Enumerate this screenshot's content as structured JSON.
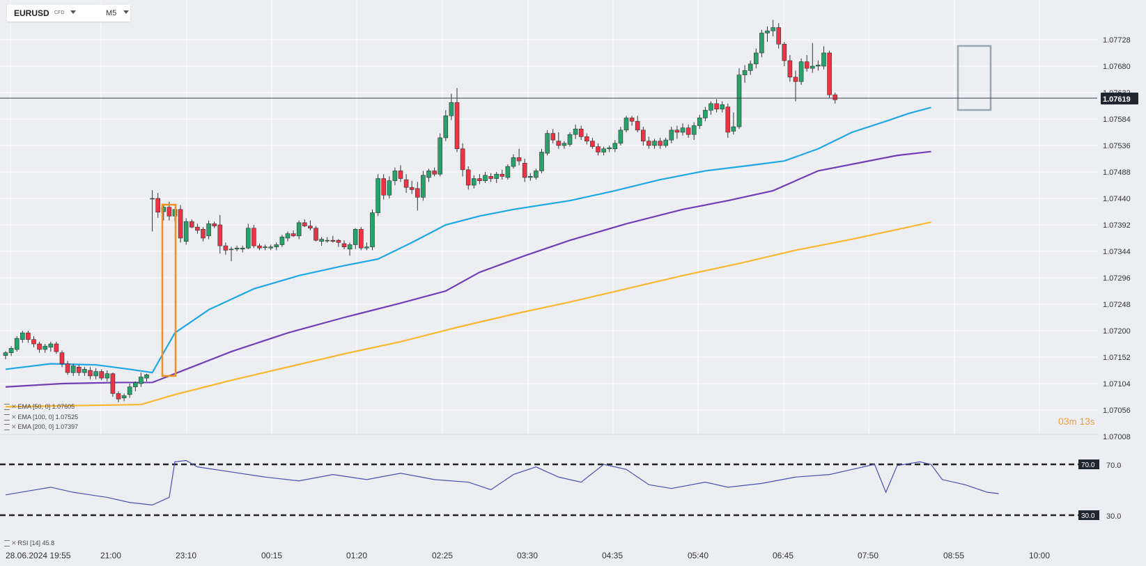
{
  "symbol": {
    "name": "EURUSD",
    "type": "CFD",
    "timeframe": "M5"
  },
  "price_axis": {
    "labels": [
      "1.07728",
      "1.07680",
      "1.07632",
      "1.07584",
      "1.07536",
      "1.07488",
      "1.07440",
      "1.07392",
      "1.07344",
      "1.07296",
      "1.07248",
      "1.07200",
      "1.07152",
      "1.07104",
      "1.07056",
      "1.07008"
    ]
  },
  "current_price": {
    "value": 1.07619,
    "label": "1.07619"
  },
  "countdown": {
    "minutes": "03",
    "m": "m",
    "seconds": "13",
    "s": "s"
  },
  "time_axis": {
    "labels": [
      "28.06.2024  19:55",
      "21:00",
      "23:10",
      "00:15",
      "01:20",
      "02:25",
      "03:30",
      "04:35",
      "05:40",
      "06:45",
      "07:50",
      "08:55",
      "10:00"
    ]
  },
  "indicators": [
    {
      "label": "EMA  [50,  0]  1.07605",
      "color": "#1ea7e4"
    },
    {
      "label": "EMA  [100,  0]  1.07525",
      "color": "#6f3fb5"
    },
    {
      "label": "EMA  [200,  0]  1.07397",
      "color": "#f7b731"
    }
  ],
  "rsi": {
    "label": "RSI  [14]  45.8",
    "upper_label": "70.0",
    "lower_label": "30.0",
    "upper": 70,
    "lower": 30
  },
  "colors": {
    "bull": "#26a26a",
    "bear": "#ee3344",
    "ema50": "#1ea7e4",
    "ema100": "#6f3fb5",
    "ema200": "#f7b731",
    "rsi_line": "#4a4fb0",
    "highlight_orange": "#f0901e",
    "highlight_gray": "#9aa7b0"
  },
  "chart_data": {
    "type": "candlestick",
    "y_range": [
      1.07008,
      1.07776
    ],
    "candles": [
      [
        1.07155,
        1.07163,
        1.07148,
        1.0716
      ],
      [
        1.0716,
        1.07172,
        1.07154,
        1.07168
      ],
      [
        1.07166,
        1.0719,
        1.07162,
        1.07186
      ],
      [
        1.07184,
        1.072,
        1.07178,
        1.07196
      ],
      [
        1.07196,
        1.072,
        1.07178,
        1.07184
      ],
      [
        1.07184,
        1.0719,
        1.0717,
        1.07176
      ],
      [
        1.07176,
        1.0718,
        1.0716,
        1.07166
      ],
      [
        1.07166,
        1.07176,
        1.0716,
        1.07172
      ],
      [
        1.0717,
        1.0718,
        1.07162,
        1.07176
      ],
      [
        1.07176,
        1.0718,
        1.07158,
        1.07162
      ],
      [
        1.0716,
        1.07164,
        1.07134,
        1.0714
      ],
      [
        1.0714,
        1.07145,
        1.0712,
        1.07124
      ],
      [
        1.07124,
        1.0714,
        1.07118,
        1.07136
      ],
      [
        1.07134,
        1.07138,
        1.07118,
        1.07124
      ],
      [
        1.07124,
        1.07134,
        1.07118,
        1.0713
      ],
      [
        1.07128,
        1.07134,
        1.07112,
        1.07118
      ],
      [
        1.07118,
        1.07132,
        1.07112,
        1.07126
      ],
      [
        1.07126,
        1.0713,
        1.0711,
        1.07114
      ],
      [
        1.07114,
        1.07128,
        1.07108,
        1.07122
      ],
      [
        1.07122,
        1.07124,
        1.0708,
        1.07086
      ],
      [
        1.07086,
        1.0709,
        1.0707,
        1.07076
      ],
      [
        1.07078,
        1.07086,
        1.07072,
        1.07082
      ],
      [
        1.07084,
        1.07104,
        1.07078,
        1.07098
      ],
      [
        1.07098,
        1.07108,
        1.0709,
        1.07106
      ],
      [
        1.07104,
        1.07124,
        1.07098,
        1.07116
      ],
      [
        1.07114,
        1.07122,
        1.07108,
        1.0712
      ],
      [
        1.0744,
        1.07455,
        1.0738,
        1.0744
      ],
      [
        1.0744,
        1.0745,
        1.07405,
        1.07415
      ],
      [
        1.07416,
        1.0743,
        1.074,
        1.07424
      ],
      [
        1.07424,
        1.07434,
        1.074,
        1.07408
      ],
      [
        1.07408,
        1.0742,
        1.07398,
        1.0742
      ],
      [
        1.0742,
        1.07428,
        1.0736,
        1.07368
      ],
      [
        1.07362,
        1.07404,
        1.07356,
        1.07398
      ],
      [
        1.07398,
        1.07402,
        1.07386,
        1.07388
      ],
      [
        1.07388,
        1.07394,
        1.07376,
        1.07382
      ],
      [
        1.07384,
        1.07388,
        1.07362,
        1.07368
      ],
      [
        1.07372,
        1.074,
        1.07366,
        1.07394
      ],
      [
        1.07394,
        1.07398,
        1.07386,
        1.0739
      ],
      [
        1.07392,
        1.0741,
        1.0734,
        1.07354
      ],
      [
        1.07354,
        1.0736,
        1.07338,
        1.07346
      ],
      [
        1.07348,
        1.07352,
        1.07326,
        1.07348
      ],
      [
        1.07348,
        1.07354,
        1.07344,
        1.0735
      ],
      [
        1.07348,
        1.07354,
        1.07342,
        1.0735
      ],
      [
        1.0735,
        1.07394,
        1.07348,
        1.07386
      ],
      [
        1.07386,
        1.07392,
        1.0735,
        1.07354
      ],
      [
        1.07354,
        1.07358,
        1.07346,
        1.0735
      ],
      [
        1.07352,
        1.07356,
        1.07346,
        1.07352
      ],
      [
        1.0735,
        1.07356,
        1.07346,
        1.07352
      ],
      [
        1.07352,
        1.0736,
        1.07346,
        1.07356
      ],
      [
        1.07356,
        1.07374,
        1.07352,
        1.0737
      ],
      [
        1.07368,
        1.0738,
        1.07362,
        1.07376
      ],
      [
        1.07376,
        1.07382,
        1.0737,
        1.07372
      ],
      [
        1.07372,
        1.074,
        1.07366,
        1.07396
      ],
      [
        1.07396,
        1.07402,
        1.07388,
        1.0739
      ],
      [
        1.0739,
        1.074,
        1.07382,
        1.07386
      ],
      [
        1.07386,
        1.0739,
        1.07362,
        1.07364
      ],
      [
        1.07362,
        1.0737,
        1.07354,
        1.07366
      ],
      [
        1.07364,
        1.0737,
        1.0736,
        1.07364
      ],
      [
        1.07364,
        1.07372,
        1.0736,
        1.07362
      ],
      [
        1.07364,
        1.07366,
        1.07352,
        1.0736
      ],
      [
        1.07358,
        1.07364,
        1.07348,
        1.07352
      ],
      [
        1.07348,
        1.0736,
        1.07336,
        1.07356
      ],
      [
        1.07356,
        1.07386,
        1.07348,
        1.07384
      ],
      [
        1.07384,
        1.07388,
        1.07346,
        1.0735
      ],
      [
        1.0735,
        1.0736,
        1.07346,
        1.07352
      ],
      [
        1.07352,
        1.0742,
        1.07346,
        1.07414
      ],
      [
        1.07414,
        1.07484,
        1.07408,
        1.07476
      ],
      [
        1.07476,
        1.07484,
        1.07438,
        1.07446
      ],
      [
        1.07446,
        1.0748,
        1.0744,
        1.07472
      ],
      [
        1.07472,
        1.07496,
        1.07464,
        1.0749
      ],
      [
        1.0749,
        1.075,
        1.0747,
        1.07476
      ],
      [
        1.07474,
        1.07484,
        1.0745,
        1.0746
      ],
      [
        1.0746,
        1.07472,
        1.07448,
        1.07456
      ],
      [
        1.07458,
        1.0747,
        1.07418,
        1.07442
      ],
      [
        1.07442,
        1.0749,
        1.07436,
        1.07482
      ],
      [
        1.07478,
        1.07494,
        1.0747,
        1.0749
      ],
      [
        1.0749,
        1.07496,
        1.0748,
        1.07484
      ],
      [
        1.07484,
        1.07558,
        1.0748,
        1.0755
      ],
      [
        1.0755,
        1.076,
        1.07544,
        1.0759
      ],
      [
        1.0759,
        1.0763,
        1.07582,
        1.07614
      ],
      [
        1.07614,
        1.0764,
        1.07524,
        1.0753
      ],
      [
        1.0753,
        1.0754,
        1.0748,
        1.07492
      ],
      [
        1.07492,
        1.07498,
        1.07456,
        1.07464
      ],
      [
        1.07464,
        1.07482,
        1.07458,
        1.07476
      ],
      [
        1.07476,
        1.07484,
        1.07466,
        1.07472
      ],
      [
        1.07472,
        1.07488,
        1.07468,
        1.07482
      ],
      [
        1.0748,
        1.07486,
        1.0747,
        1.07476
      ],
      [
        1.07476,
        1.07488,
        1.07468,
        1.07484
      ],
      [
        1.07484,
        1.07492,
        1.07474,
        1.0748
      ],
      [
        1.07478,
        1.07502,
        1.07474,
        1.07498
      ],
      [
        1.07498,
        1.0752,
        1.07494,
        1.07514
      ],
      [
        1.07514,
        1.0753,
        1.075,
        1.07508
      ],
      [
        1.07504,
        1.07512,
        1.0747,
        1.07478
      ],
      [
        1.07478,
        1.07486,
        1.07472,
        1.0748
      ],
      [
        1.07478,
        1.07494,
        1.07474,
        1.0749
      ],
      [
        1.0749,
        1.0753,
        1.07486,
        1.07524
      ],
      [
        1.07522,
        1.07564,
        1.07518,
        1.07558
      ],
      [
        1.07558,
        1.07566,
        1.0754,
        1.07546
      ],
      [
        1.07544,
        1.0756,
        1.0753,
        1.07536
      ],
      [
        1.07536,
        1.07544,
        1.0753,
        1.0754
      ],
      [
        1.07538,
        1.0756,
        1.07534,
        1.07556
      ],
      [
        1.07556,
        1.07574,
        1.07548,
        1.07566
      ],
      [
        1.07566,
        1.07572,
        1.07546,
        1.07552
      ],
      [
        1.07552,
        1.07558,
        1.07538,
        1.07544
      ],
      [
        1.07544,
        1.0755,
        1.0753,
        1.07534
      ],
      [
        1.07534,
        1.0754,
        1.07518,
        1.07524
      ],
      [
        1.07524,
        1.07534,
        1.07518,
        1.0753
      ],
      [
        1.0753,
        1.07536,
        1.07524,
        1.07532
      ],
      [
        1.0753,
        1.07546,
        1.07524,
        1.0754
      ],
      [
        1.0754,
        1.0757,
        1.07536,
        1.07564
      ],
      [
        1.07564,
        1.0759,
        1.0756,
        1.07586
      ],
      [
        1.07586,
        1.0759,
        1.07572,
        1.0758
      ],
      [
        1.0758,
        1.0759,
        1.0756,
        1.07564
      ],
      [
        1.07564,
        1.0757,
        1.07536,
        1.07544
      ],
      [
        1.07544,
        1.07552,
        1.0753,
        1.07536
      ],
      [
        1.07536,
        1.07548,
        1.0753,
        1.07544
      ],
      [
        1.07544,
        1.0755,
        1.0753,
        1.07536
      ],
      [
        1.07536,
        1.0755,
        1.07532,
        1.07546
      ],
      [
        1.07546,
        1.0757,
        1.0754,
        1.07564
      ],
      [
        1.07564,
        1.07572,
        1.07548,
        1.0756
      ],
      [
        1.0756,
        1.07576,
        1.07554,
        1.07568
      ],
      [
        1.07568,
        1.07574,
        1.0755,
        1.07556
      ],
      [
        1.07556,
        1.07578,
        1.07546,
        1.07572
      ],
      [
        1.07572,
        1.07592,
        1.07566,
        1.07586
      ],
      [
        1.07586,
        1.07606,
        1.0758,
        1.076
      ],
      [
        1.076,
        1.07616,
        1.07592,
        1.07612
      ],
      [
        1.07612,
        1.0762,
        1.07596,
        1.07602
      ],
      [
        1.07602,
        1.07616,
        1.07596,
        1.0761
      ],
      [
        1.07606,
        1.07612,
        1.0755,
        1.0756
      ],
      [
        1.07562,
        1.07596,
        1.07556,
        1.0757
      ],
      [
        1.0757,
        1.07676,
        1.07566,
        1.07664
      ],
      [
        1.07664,
        1.07682,
        1.0765,
        1.07672
      ],
      [
        1.07672,
        1.0769,
        1.07664,
        1.07684
      ],
      [
        1.07684,
        1.07712,
        1.07676,
        1.07704
      ],
      [
        1.07704,
        1.07746,
        1.07696,
        1.0774
      ],
      [
        1.0774,
        1.07752,
        1.07724,
        1.07744
      ],
      [
        1.07744,
        1.07764,
        1.07734,
        1.0775
      ],
      [
        1.0775,
        1.07758,
        1.07712,
        1.0772
      ],
      [
        1.0772,
        1.07724,
        1.0768,
        1.0769
      ],
      [
        1.0769,
        1.077,
        1.07652,
        1.0766
      ],
      [
        1.0766,
        1.07672,
        1.07616,
        1.07652
      ],
      [
        1.07652,
        1.07694,
        1.07646,
        1.07688
      ],
      [
        1.07688,
        1.077,
        1.0767,
        1.07676
      ],
      [
        1.07676,
        1.07722,
        1.07668,
        1.0768
      ],
      [
        1.0768,
        1.0769,
        1.07672,
        1.07682
      ],
      [
        1.0768,
        1.07716,
        1.07674,
        1.07704
      ],
      [
        1.07704,
        1.07708,
        1.07622,
        1.07628
      ],
      [
        1.07628,
        1.07632,
        1.07612,
        1.07619
      ]
    ],
    "ema50": [
      [
        0,
        1.0713
      ],
      [
        8,
        1.0714
      ],
      [
        16,
        1.07138
      ],
      [
        22,
        1.0713
      ],
      [
        26,
        1.07124
      ],
      [
        30,
        1.07196
      ],
      [
        36,
        1.07238
      ],
      [
        44,
        1.07276
      ],
      [
        52,
        1.073
      ],
      [
        60,
        1.07318
      ],
      [
        66,
        1.0733
      ],
      [
        72,
        1.0736
      ],
      [
        78,
        1.07392
      ],
      [
        84,
        1.07408
      ],
      [
        90,
        1.0742
      ],
      [
        100,
        1.07436
      ],
      [
        108,
        1.07454
      ],
      [
        116,
        1.07474
      ],
      [
        124,
        1.0749
      ],
      [
        132,
        1.075
      ],
      [
        138,
        1.07508
      ],
      [
        144,
        1.0753
      ],
      [
        150,
        1.0756
      ],
      [
        156,
        1.0758
      ],
      [
        160,
        1.07594
      ],
      [
        164,
        1.07605
      ]
    ],
    "ema100": [
      [
        0,
        1.07098
      ],
      [
        10,
        1.07104
      ],
      [
        20,
        1.07106
      ],
      [
        26,
        1.07106
      ],
      [
        32,
        1.0713
      ],
      [
        40,
        1.07162
      ],
      [
        50,
        1.07196
      ],
      [
        60,
        1.07224
      ],
      [
        70,
        1.0725
      ],
      [
        78,
        1.07272
      ],
      [
        84,
        1.07306
      ],
      [
        92,
        1.07336
      ],
      [
        100,
        1.07364
      ],
      [
        110,
        1.07394
      ],
      [
        120,
        1.0742
      ],
      [
        128,
        1.07436
      ],
      [
        136,
        1.07454
      ],
      [
        144,
        1.0749
      ],
      [
        152,
        1.07506
      ],
      [
        158,
        1.07518
      ],
      [
        164,
        1.07525
      ]
    ],
    "ema200": [
      [
        0,
        1.07062
      ],
      [
        12,
        1.07064
      ],
      [
        24,
        1.07066
      ],
      [
        30,
        1.07084
      ],
      [
        40,
        1.0711
      ],
      [
        50,
        1.07134
      ],
      [
        60,
        1.07158
      ],
      [
        70,
        1.0718
      ],
      [
        80,
        1.07206
      ],
      [
        90,
        1.0723
      ],
      [
        100,
        1.07252
      ],
      [
        110,
        1.07276
      ],
      [
        120,
        1.073
      ],
      [
        130,
        1.07322
      ],
      [
        140,
        1.07346
      ],
      [
        150,
        1.07366
      ],
      [
        160,
        1.07388
      ],
      [
        164,
        1.07397
      ]
    ],
    "rsi": [
      [
        0,
        46
      ],
      [
        4,
        49
      ],
      [
        8,
        52
      ],
      [
        12,
        48
      ],
      [
        18,
        44
      ],
      [
        22,
        40
      ],
      [
        26,
        38
      ],
      [
        29,
        44
      ],
      [
        30,
        72
      ],
      [
        32,
        73
      ],
      [
        34,
        68
      ],
      [
        40,
        64
      ],
      [
        46,
        60
      ],
      [
        52,
        57
      ],
      [
        58,
        62
      ],
      [
        64,
        58
      ],
      [
        70,
        63
      ],
      [
        76,
        58
      ],
      [
        82,
        56
      ],
      [
        86,
        50
      ],
      [
        90,
        62
      ],
      [
        94,
        68
      ],
      [
        98,
        60
      ],
      [
        102,
        56
      ],
      [
        106,
        70
      ],
      [
        110,
        66
      ],
      [
        114,
        54
      ],
      [
        118,
        51
      ],
      [
        124,
        56
      ],
      [
        128,
        52
      ],
      [
        134,
        55
      ],
      [
        140,
        60
      ],
      [
        146,
        62
      ],
      [
        150,
        66
      ],
      [
        154,
        70
      ],
      [
        156,
        48
      ],
      [
        158,
        69
      ],
      [
        162,
        72
      ],
      [
        164,
        70
      ],
      [
        166,
        58
      ],
      [
        170,
        54
      ],
      [
        174,
        48
      ],
      [
        176,
        47
      ]
    ]
  }
}
